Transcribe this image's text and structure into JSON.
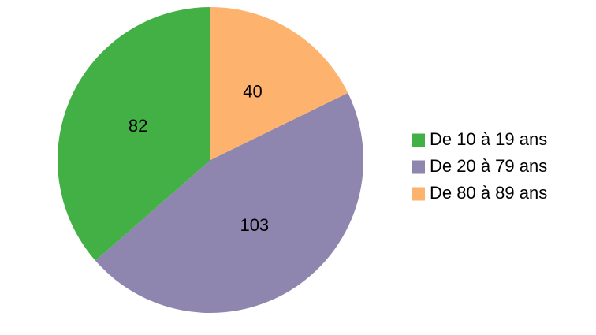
{
  "chart_data": {
    "type": "pie",
    "title": "",
    "categories": [
      "De 10 à 19 ans",
      "De 20 à 79 ans",
      "De 80 à 89 ans"
    ],
    "values": [
      82,
      103,
      40
    ],
    "colors": [
      "#43b045",
      "#8e86ae",
      "#fdb36e"
    ],
    "start_angle_deg": 0,
    "direction": "clockwise-from-top, last category first",
    "legend": {
      "placement": "right",
      "entries": [
        "De 10 à 19 ans",
        "De 20 à 79 ans",
        "De 80 à 89 ans"
      ]
    },
    "data_labels": [
      "82",
      "103",
      "40"
    ]
  }
}
